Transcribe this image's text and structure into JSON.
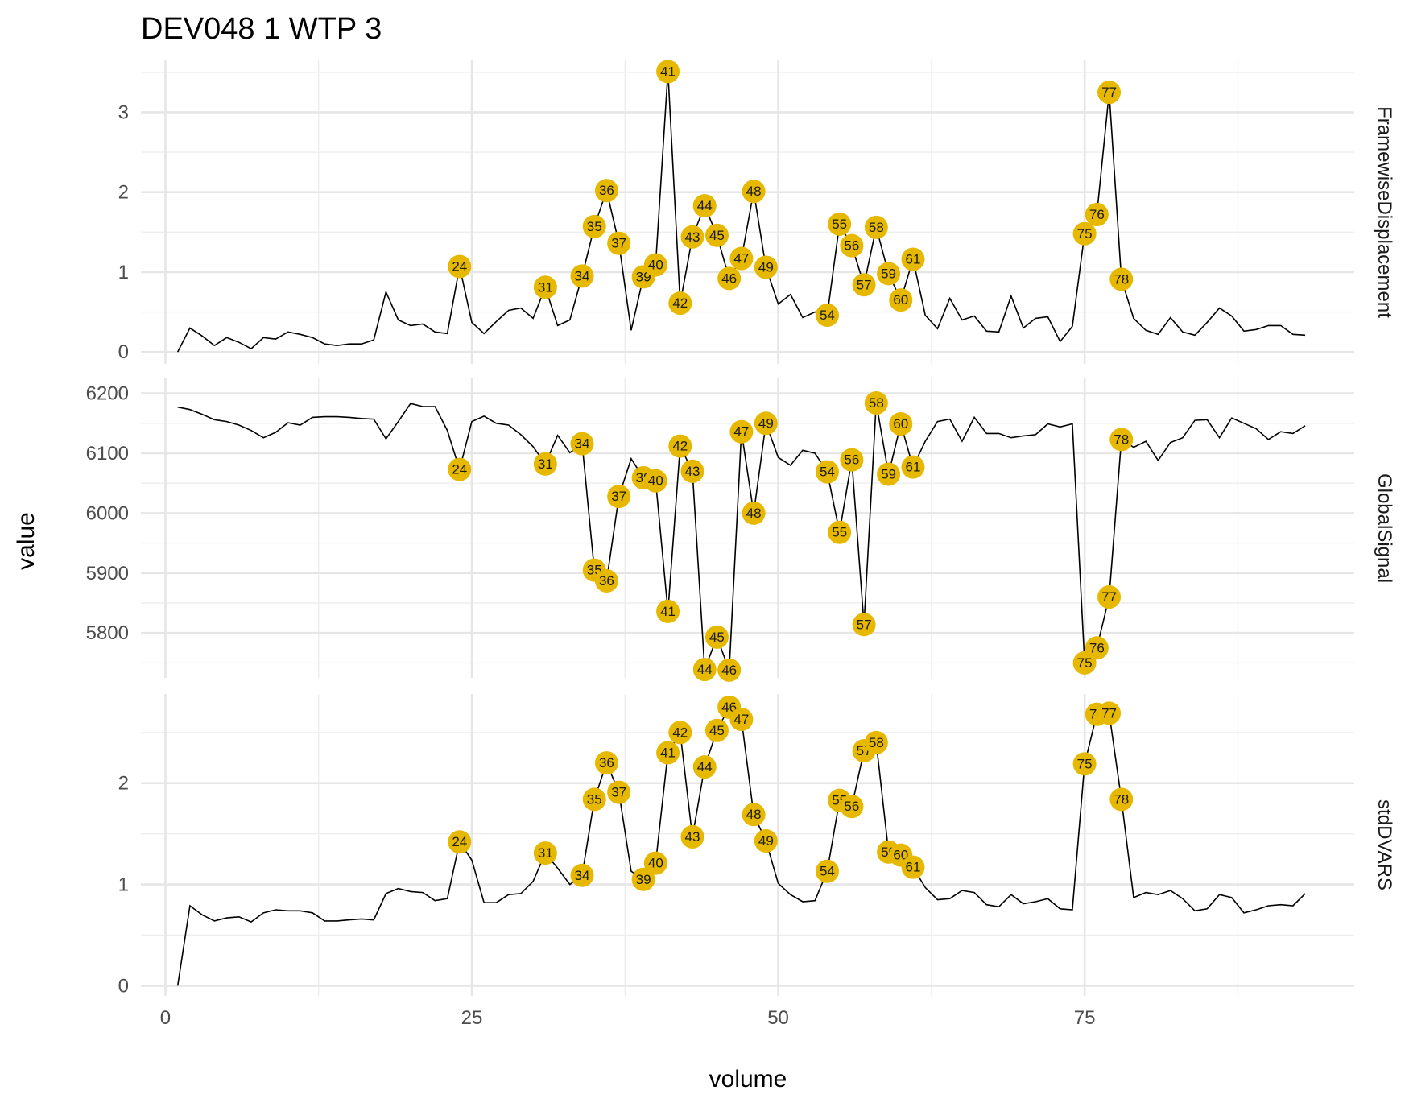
{
  "chart_data": {
    "type": "line",
    "title": "DEV048  1  WTP  3",
    "xlabel": "volume",
    "ylabel": "value",
    "x_ticks": [
      0,
      25,
      50,
      75
    ],
    "x_range": [
      -2,
      97
    ],
    "highlight_color": "#E7B800",
    "line_color": "#000000",
    "grid": true,
    "facets": [
      {
        "name": "FramewiseDisplacement",
        "ylim": [
          -0.15,
          3.65
        ],
        "y_ticks": [
          0,
          1,
          2,
          3
        ],
        "x": [
          1,
          2,
          3,
          4,
          5,
          6,
          7,
          8,
          9,
          10,
          11,
          12,
          13,
          14,
          15,
          16,
          17,
          18,
          19,
          20,
          21,
          22,
          23,
          24,
          25,
          26,
          27,
          28,
          29,
          30,
          31,
          32,
          33,
          34,
          35,
          36,
          37,
          38,
          39,
          40,
          41,
          42,
          43,
          44,
          45,
          46,
          47,
          48,
          49,
          50,
          51,
          52,
          53,
          54,
          55,
          56,
          57,
          58,
          59,
          60,
          61,
          62,
          63,
          64,
          65,
          66,
          67,
          68,
          69,
          70,
          71,
          72,
          73,
          74,
          75,
          76,
          77,
          78,
          79,
          80,
          81,
          82,
          83,
          84,
          85,
          86,
          87,
          88,
          89,
          90,
          91,
          92,
          93
        ],
        "values": [
          0.0,
          0.3,
          0.2,
          0.08,
          0.18,
          0.12,
          0.04,
          0.18,
          0.16,
          0.25,
          0.22,
          0.18,
          0.1,
          0.08,
          0.1,
          0.1,
          0.15,
          0.75,
          0.4,
          0.33,
          0.35,
          0.25,
          0.23,
          1.07,
          0.37,
          0.23,
          0.38,
          0.52,
          0.55,
          0.42,
          0.81,
          0.33,
          0.4,
          0.95,
          1.57,
          2.02,
          1.36,
          0.27,
          0.94,
          1.09,
          3.51,
          0.61,
          1.44,
          1.83,
          1.46,
          0.92,
          1.17,
          2.01,
          1.06,
          0.6,
          0.72,
          0.43,
          0.5,
          0.46,
          1.6,
          1.33,
          0.84,
          1.56,
          0.98,
          0.65,
          1.16,
          0.46,
          0.29,
          0.67,
          0.4,
          0.45,
          0.26,
          0.25,
          0.7,
          0.3,
          0.42,
          0.44,
          0.13,
          0.32,
          1.48,
          1.72,
          3.25,
          0.91,
          0.42,
          0.27,
          0.22,
          0.43,
          0.25,
          0.21,
          0.37,
          0.55,
          0.45,
          0.26,
          0.28,
          0.33,
          0.33,
          0.22,
          0.21
        ],
        "flagged": [
          {
            "vol": 24,
            "label": "24",
            "value": 1.07
          },
          {
            "vol": 31,
            "label": "31",
            "value": 0.81
          },
          {
            "vol": 34,
            "label": "34",
            "value": 0.95
          },
          {
            "vol": 35,
            "label": "35",
            "value": 1.57
          },
          {
            "vol": 36,
            "label": "36",
            "value": 2.02
          },
          {
            "vol": 37,
            "label": "37",
            "value": 1.36
          },
          {
            "vol": 39,
            "label": "39",
            "value": 0.94
          },
          {
            "vol": 40,
            "label": "40",
            "value": 1.09
          },
          {
            "vol": 41,
            "label": "41",
            "value": 3.51
          },
          {
            "vol": 42,
            "label": "42",
            "value": 0.61
          },
          {
            "vol": 43,
            "label": "43",
            "value": 1.44
          },
          {
            "vol": 44,
            "label": "44",
            "value": 1.83
          },
          {
            "vol": 45,
            "label": "45",
            "value": 1.46
          },
          {
            "vol": 46,
            "label": "46",
            "value": 0.92
          },
          {
            "vol": 47,
            "label": "47",
            "value": 1.17
          },
          {
            "vol": 48,
            "label": "48",
            "value": 2.01
          },
          {
            "vol": 49,
            "label": "49",
            "value": 1.06
          },
          {
            "vol": 54,
            "label": "54",
            "value": 0.46
          },
          {
            "vol": 55,
            "label": "55",
            "value": 1.6
          },
          {
            "vol": 56,
            "label": "56",
            "value": 1.33
          },
          {
            "vol": 57,
            "label": "57",
            "value": 0.84
          },
          {
            "vol": 58,
            "label": "58",
            "value": 1.56
          },
          {
            "vol": 59,
            "label": "59",
            "value": 0.98
          },
          {
            "vol": 60,
            "label": "60",
            "value": 0.65
          },
          {
            "vol": 61,
            "label": "61",
            "value": 1.16
          },
          {
            "vol": 75,
            "label": "75",
            "value": 1.48
          },
          {
            "vol": 76,
            "label": "76",
            "value": 1.72
          },
          {
            "vol": 77,
            "label": "77",
            "value": 3.25
          },
          {
            "vol": 78,
            "label": "78",
            "value": 0.91
          }
        ]
      },
      {
        "name": "GlobalSignal",
        "ylim": [
          5725,
          6225
        ],
        "y_ticks": [
          5800,
          5900,
          6000,
          6100,
          6200
        ],
        "x": [
          1,
          2,
          3,
          4,
          5,
          6,
          7,
          8,
          9,
          10,
          11,
          12,
          13,
          14,
          15,
          16,
          17,
          18,
          19,
          20,
          21,
          22,
          23,
          24,
          25,
          26,
          27,
          28,
          29,
          30,
          31,
          32,
          33,
          34,
          35,
          36,
          37,
          38,
          39,
          40,
          41,
          42,
          43,
          44,
          45,
          46,
          47,
          48,
          49,
          50,
          51,
          52,
          53,
          54,
          55,
          56,
          57,
          58,
          59,
          60,
          61,
          62,
          63,
          64,
          65,
          66,
          67,
          68,
          69,
          70,
          71,
          72,
          73,
          74,
          75,
          76,
          77,
          78,
          79,
          80,
          81,
          82,
          83,
          84,
          85,
          86,
          87,
          88,
          89,
          90,
          91,
          92,
          93
        ],
        "values": [
          6177,
          6173,
          6165,
          6156,
          6153,
          6147,
          6138,
          6126,
          6135,
          6151,
          6147,
          6160,
          6161,
          6161,
          6160,
          6158,
          6157,
          6124,
          6153,
          6183,
          6178,
          6178,
          6138,
          6073,
          6153,
          6162,
          6150,
          6147,
          6131,
          6111,
          6082,
          6130,
          6101,
          6116,
          5905,
          5887,
          6028,
          6091,
          6059,
          6054,
          5836,
          6112,
          6070,
          5739,
          5793,
          5738,
          6136,
          6000,
          6150,
          6093,
          6080,
          6105,
          6100,
          6069,
          5968,
          6089,
          5814,
          6184,
          6065,
          6149,
          6077,
          6120,
          6153,
          6157,
          6120,
          6160,
          6133,
          6133,
          6126,
          6129,
          6131,
          6149,
          6144,
          6149,
          5750,
          5775,
          5860,
          6123,
          6110,
          6120,
          6088,
          6118,
          6126,
          6155,
          6156,
          6126,
          6159,
          6150,
          6141,
          6123,
          6136,
          6133,
          6146
        ],
        "flagged": [
          {
            "vol": 24,
            "label": "24",
            "value": 6073
          },
          {
            "vol": 31,
            "label": "31",
            "value": 6082
          },
          {
            "vol": 34,
            "label": "34",
            "value": 6116
          },
          {
            "vol": 35,
            "label": "35",
            "value": 5905
          },
          {
            "vol": 36,
            "label": "36",
            "value": 5887
          },
          {
            "vol": 37,
            "label": "37",
            "value": 6028
          },
          {
            "vol": 39,
            "label": "39",
            "value": 6059
          },
          {
            "vol": 40,
            "label": "40",
            "value": 6054
          },
          {
            "vol": 41,
            "label": "41",
            "value": 5836
          },
          {
            "vol": 42,
            "label": "42",
            "value": 6112
          },
          {
            "vol": 43,
            "label": "43",
            "value": 6070
          },
          {
            "vol": 44,
            "label": "44",
            "value": 5739
          },
          {
            "vol": 45,
            "label": "45",
            "value": 5793
          },
          {
            "vol": 46,
            "label": "46",
            "value": 5738
          },
          {
            "vol": 47,
            "label": "47",
            "value": 6136
          },
          {
            "vol": 48,
            "label": "48",
            "value": 6000
          },
          {
            "vol": 49,
            "label": "49",
            "value": 6150
          },
          {
            "vol": 54,
            "label": "54",
            "value": 6069
          },
          {
            "vol": 55,
            "label": "55",
            "value": 5968
          },
          {
            "vol": 56,
            "label": "56",
            "value": 6089
          },
          {
            "vol": 57,
            "label": "57",
            "value": 5814
          },
          {
            "vol": 58,
            "label": "58",
            "value": 6184
          },
          {
            "vol": 59,
            "label": "59",
            "value": 6065
          },
          {
            "vol": 60,
            "label": "60",
            "value": 6149
          },
          {
            "vol": 61,
            "label": "61",
            "value": 6077
          },
          {
            "vol": 75,
            "label": "75",
            "value": 5750
          },
          {
            "vol": 76,
            "label": "76",
            "value": 5775
          },
          {
            "vol": 77,
            "label": "77",
            "value": 5860
          },
          {
            "vol": 78,
            "label": "78",
            "value": 6123
          }
        ]
      },
      {
        "name": "stdDVARS",
        "ylim": [
          -0.1,
          2.88
        ],
        "y_ticks": [
          0,
          1,
          2
        ],
        "x": [
          1,
          2,
          3,
          4,
          5,
          6,
          7,
          8,
          9,
          10,
          11,
          12,
          13,
          14,
          15,
          16,
          17,
          18,
          19,
          20,
          21,
          22,
          23,
          24,
          25,
          26,
          27,
          28,
          29,
          30,
          31,
          32,
          33,
          34,
          35,
          36,
          37,
          38,
          39,
          40,
          41,
          42,
          43,
          44,
          45,
          46,
          47,
          48,
          49,
          50,
          51,
          52,
          53,
          54,
          55,
          56,
          57,
          58,
          59,
          60,
          61,
          62,
          63,
          64,
          65,
          66,
          67,
          68,
          69,
          70,
          71,
          72,
          73,
          74,
          75,
          76,
          77,
          78,
          79,
          80,
          81,
          82,
          83,
          84,
          85,
          86,
          87,
          88,
          89,
          90,
          91,
          92,
          93
        ],
        "values": [
          0.0,
          0.79,
          0.7,
          0.64,
          0.67,
          0.68,
          0.63,
          0.72,
          0.75,
          0.74,
          0.74,
          0.72,
          0.64,
          0.64,
          0.65,
          0.66,
          0.65,
          0.91,
          0.96,
          0.93,
          0.92,
          0.84,
          0.86,
          1.42,
          1.24,
          0.82,
          0.82,
          0.9,
          0.91,
          1.03,
          1.31,
          1.16,
          1.0,
          1.09,
          1.84,
          2.2,
          1.91,
          1.13,
          1.05,
          1.21,
          2.3,
          2.5,
          1.47,
          2.16,
          2.52,
          2.75,
          2.63,
          1.69,
          1.43,
          1.01,
          0.9,
          0.83,
          0.84,
          1.13,
          1.83,
          1.77,
          2.32,
          2.4,
          1.32,
          1.29,
          1.17,
          0.97,
          0.85,
          0.86,
          0.94,
          0.92,
          0.8,
          0.78,
          0.9,
          0.81,
          0.83,
          0.86,
          0.76,
          0.75,
          2.19,
          2.68,
          2.69,
          1.84,
          0.87,
          0.92,
          0.9,
          0.94,
          0.86,
          0.74,
          0.76,
          0.9,
          0.87,
          0.72,
          0.75,
          0.79,
          0.8,
          0.79,
          0.91
        ],
        "flagged": [
          {
            "vol": 24,
            "label": "24",
            "value": 1.42
          },
          {
            "vol": 31,
            "label": "31",
            "value": 1.31
          },
          {
            "vol": 34,
            "label": "34",
            "value": 1.09
          },
          {
            "vol": 35,
            "label": "35",
            "value": 1.84
          },
          {
            "vol": 36,
            "label": "36",
            "value": 2.2
          },
          {
            "vol": 37,
            "label": "37",
            "value": 1.91
          },
          {
            "vol": 39,
            "label": "39",
            "value": 1.05
          },
          {
            "vol": 40,
            "label": "40",
            "value": 1.21
          },
          {
            "vol": 41,
            "label": "41",
            "value": 2.3
          },
          {
            "vol": 42,
            "label": "42",
            "value": 2.5
          },
          {
            "vol": 43,
            "label": "43",
            "value": 1.47
          },
          {
            "vol": 44,
            "label": "44",
            "value": 2.16
          },
          {
            "vol": 45,
            "label": "45",
            "value": 2.52
          },
          {
            "vol": 46,
            "label": "46",
            "value": 2.75
          },
          {
            "vol": 47,
            "label": "47",
            "value": 2.63
          },
          {
            "vol": 48,
            "label": "48",
            "value": 1.69
          },
          {
            "vol": 49,
            "label": "49",
            "value": 1.43
          },
          {
            "vol": 54,
            "label": "54",
            "value": 1.13
          },
          {
            "vol": 55,
            "label": "55",
            "value": 1.83
          },
          {
            "vol": 56,
            "label": "56",
            "value": 1.77
          },
          {
            "vol": 57,
            "label": "57",
            "value": 2.32
          },
          {
            "vol": 58,
            "label": "58",
            "value": 2.4
          },
          {
            "vol": 59,
            "label": "59",
            "value": 1.32
          },
          {
            "vol": 60,
            "label": "60",
            "value": 1.29
          },
          {
            "vol": 61,
            "label": "61",
            "value": 1.17
          },
          {
            "vol": 75,
            "label": "75",
            "value": 2.19
          },
          {
            "vol": 76,
            "label": "76",
            "value": 2.68
          },
          {
            "vol": 77,
            "label": "77",
            "value": 2.69
          },
          {
            "vol": 78,
            "label": "78",
            "value": 1.84
          }
        ]
      }
    ]
  }
}
